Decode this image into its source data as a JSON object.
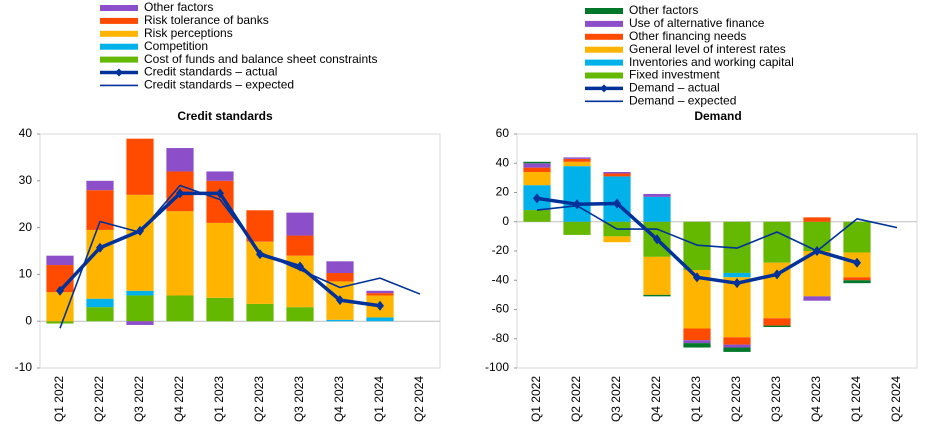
{
  "chart_data": [
    {
      "type": "bar",
      "title": "Credit standards",
      "categories": [
        "Q1 2022",
        "Q2 2022",
        "Q3 2022",
        "Q4 2022",
        "Q1 2023",
        "Q2 2023",
        "Q3 2023",
        "Q4 2023",
        "Q1 2024",
        "Q2 2024"
      ],
      "ylim": [
        -10,
        40
      ],
      "yticks": [
        -10,
        0,
        10,
        20,
        30,
        40
      ],
      "series": [
        {
          "name": "Other factors",
          "color": "#8c4fc9",
          "values": [
            2,
            2,
            -0.8,
            5,
            2,
            0,
            4.9,
            2.5,
            0.5,
            null
          ]
        },
        {
          "name": "Risk tolerance of banks",
          "color": "#ff4b00",
          "values": [
            5.8,
            8.5,
            12,
            8.5,
            9,
            6.7,
            4.3,
            1.8,
            0.5,
            null
          ]
        },
        {
          "name": "Risk perceptions",
          "color": "#ffb400",
          "values": [
            6.2,
            14.7,
            20.5,
            18,
            16,
            13.3,
            11,
            8.2,
            4.7,
            null
          ]
        },
        {
          "name": "Competition",
          "color": "#00b1ea",
          "values": [
            0,
            1.8,
            1,
            0,
            0,
            0,
            0,
            0.3,
            0.8,
            null
          ]
        },
        {
          "name": "Cost of funds and balance sheet constraints",
          "color": "#65b800",
          "values": [
            -0.5,
            3,
            5.5,
            5.5,
            5,
            3.7,
            3,
            0,
            0,
            null
          ]
        },
        {
          "name": "Credit standards – actual",
          "color": "#003299",
          "type": "line",
          "marker": "diamond",
          "values": [
            6.5,
            15.7,
            19.3,
            27.3,
            27.3,
            14.3,
            11.7,
            4.5,
            3.3,
            null
          ]
        },
        {
          "name": "Credit standards – expected",
          "color": "#003299",
          "type": "line",
          "values": [
            -1.5,
            21.3,
            19,
            29,
            26,
            14.7,
            11,
            7.2,
            9.2,
            5.8
          ]
        }
      ]
    },
    {
      "type": "bar",
      "title": "Demand",
      "categories": [
        "Q1 2022",
        "Q2 2022",
        "Q3 2022",
        "Q4 2022",
        "Q1 2023",
        "Q2 2023",
        "Q3 2023",
        "Q4 2023",
        "Q1 2024",
        "Q2 2024"
      ],
      "ylim": [
        -100,
        60
      ],
      "yticks": [
        -100,
        -80,
        -60,
        -40,
        -20,
        0,
        20,
        40,
        60
      ],
      "series": [
        {
          "name": "Other factors",
          "color": "#00782a",
          "values": [
            1,
            0,
            0,
            -1,
            -3,
            -3,
            -1,
            0,
            -2,
            null
          ]
        },
        {
          "name": "Use of alternative finance",
          "color": "#8c4fc9",
          "values": [
            3,
            1,
            1,
            2,
            -2,
            -2,
            0,
            -3,
            0,
            null
          ]
        },
        {
          "name": "Other financing needs",
          "color": "#ff4b00",
          "values": [
            3,
            2,
            2,
            0,
            -8,
            -5,
            -5,
            3,
            -2,
            null
          ]
        },
        {
          "name": "General level of interest rates",
          "color": "#ffb400",
          "values": [
            9,
            3,
            -4,
            -26,
            -40,
            -41,
            -38,
            -31,
            -17,
            null
          ]
        },
        {
          "name": "Inventories and working capital",
          "color": "#00b1ea",
          "values": [
            17,
            38,
            31,
            17,
            0,
            -3,
            0,
            0,
            0,
            null
          ]
        },
        {
          "name": "Fixed investment",
          "color": "#65b800",
          "values": [
            8,
            -9,
            -10,
            -24,
            -33,
            -35,
            -28,
            -20,
            -21,
            null
          ]
        },
        {
          "name": "Demand – actual",
          "color": "#003299",
          "type": "line",
          "marker": "diamond",
          "values": [
            16,
            12,
            12.5,
            -12,
            -38,
            -42,
            -36,
            -20,
            -28,
            null
          ]
        },
        {
          "name": "Demand – expected",
          "color": "#003299",
          "type": "line",
          "values": [
            8,
            11,
            -5,
            -5,
            -16,
            -18,
            -7,
            -20,
            2,
            -4
          ]
        }
      ]
    }
  ]
}
